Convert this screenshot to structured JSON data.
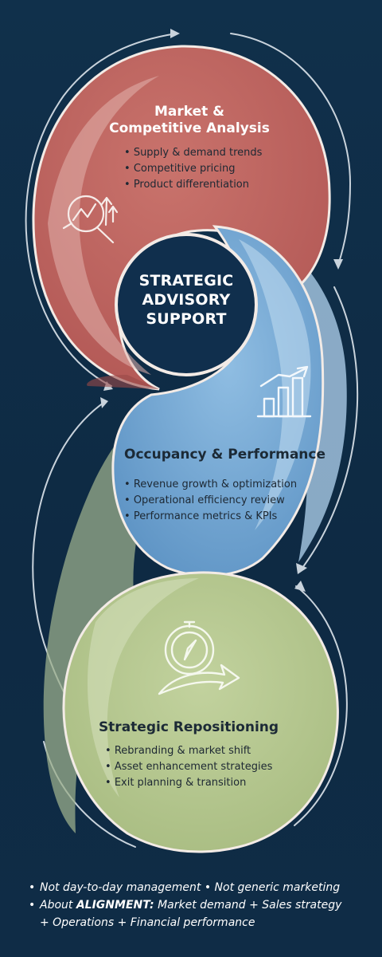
{
  "center": {
    "line1": "STRATEGIC",
    "line2": "ADVISORY",
    "line3": "SUPPORT"
  },
  "sections": [
    {
      "title_line1": "Market &",
      "title_line2": "Competitive Analysis",
      "icon": "magnifier-chart-icon",
      "color": "#c0615e",
      "items": [
        "Supply & demand trends",
        "Competitive pricing",
        "Product differentiation"
      ]
    },
    {
      "title": "Occupancy & Performance",
      "icon": "growth-bar-chart-icon",
      "color": "#7fb0d8",
      "items": [
        "Revenue growth & optimization",
        "Operational efficiency review",
        "Performance metrics & KPIs"
      ]
    },
    {
      "title": "Strategic Repositioning",
      "icon": "compass-arrow-icon",
      "color": "#b3c48e",
      "items": [
        "Rebranding & market shift",
        "Asset enhancement strategies",
        "Exit planning & transition"
      ]
    }
  ],
  "footer": {
    "line1": "Not day-to-day management • Not generic marketing",
    "line2_prefix": "About ",
    "line2_bold": "ALIGNMENT:",
    "line2_suffix": " Market demand + Sales strategy",
    "line3": "+ Operations + Financial performance"
  }
}
